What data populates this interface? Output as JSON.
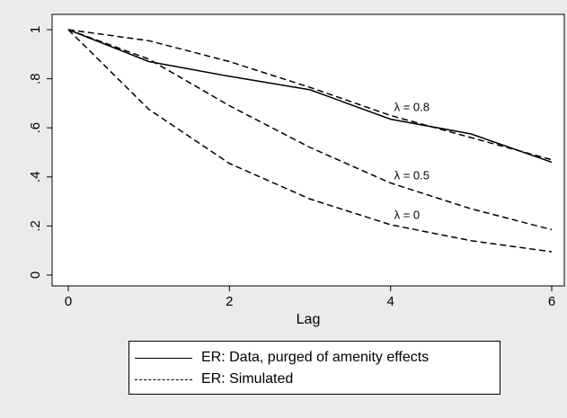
{
  "chart_data": {
    "type": "line",
    "xlabel": "Lag",
    "ylabel": "",
    "xlim": [
      0,
      6
    ],
    "ylim": [
      0,
      1
    ],
    "xticks": [
      0,
      2,
      4,
      6
    ],
    "xtick_labels": [
      "0",
      "2",
      "4",
      "6"
    ],
    "yticks": [
      0,
      0.2,
      0.4,
      0.6,
      0.8,
      1
    ],
    "ytick_labels": [
      "0",
      ".2",
      ".4",
      ".6",
      ".8",
      "1"
    ],
    "x": [
      0,
      1,
      2,
      3,
      4,
      5,
      6
    ],
    "series": [
      {
        "name": "ER: Data, purged of amenity effects",
        "style": "solid",
        "values": [
          1,
          0.87,
          0.81,
          0.755,
          0.635,
          0.575,
          0.46
        ]
      },
      {
        "name": "",
        "label": "λ = 0.8",
        "style": "dashed",
        "values": [
          1,
          0.955,
          0.87,
          0.765,
          0.65,
          0.56,
          0.47
        ]
      },
      {
        "name": "",
        "label": "λ = 0.5",
        "style": "dashed",
        "values": [
          1,
          0.88,
          0.69,
          0.52,
          0.375,
          0.27,
          0.185
        ]
      },
      {
        "name": "",
        "label": "λ = 0",
        "style": "dashed",
        "values": [
          1,
          0.675,
          0.455,
          0.31,
          0.205,
          0.14,
          0.095
        ]
      }
    ],
    "legend": {
      "position": "bottom",
      "entries": [
        {
          "label": "ER: Data, purged of amenity effects",
          "style": "solid"
        },
        {
          "label": "ER: Simulated",
          "style": "dashed"
        }
      ]
    },
    "grid": false
  }
}
